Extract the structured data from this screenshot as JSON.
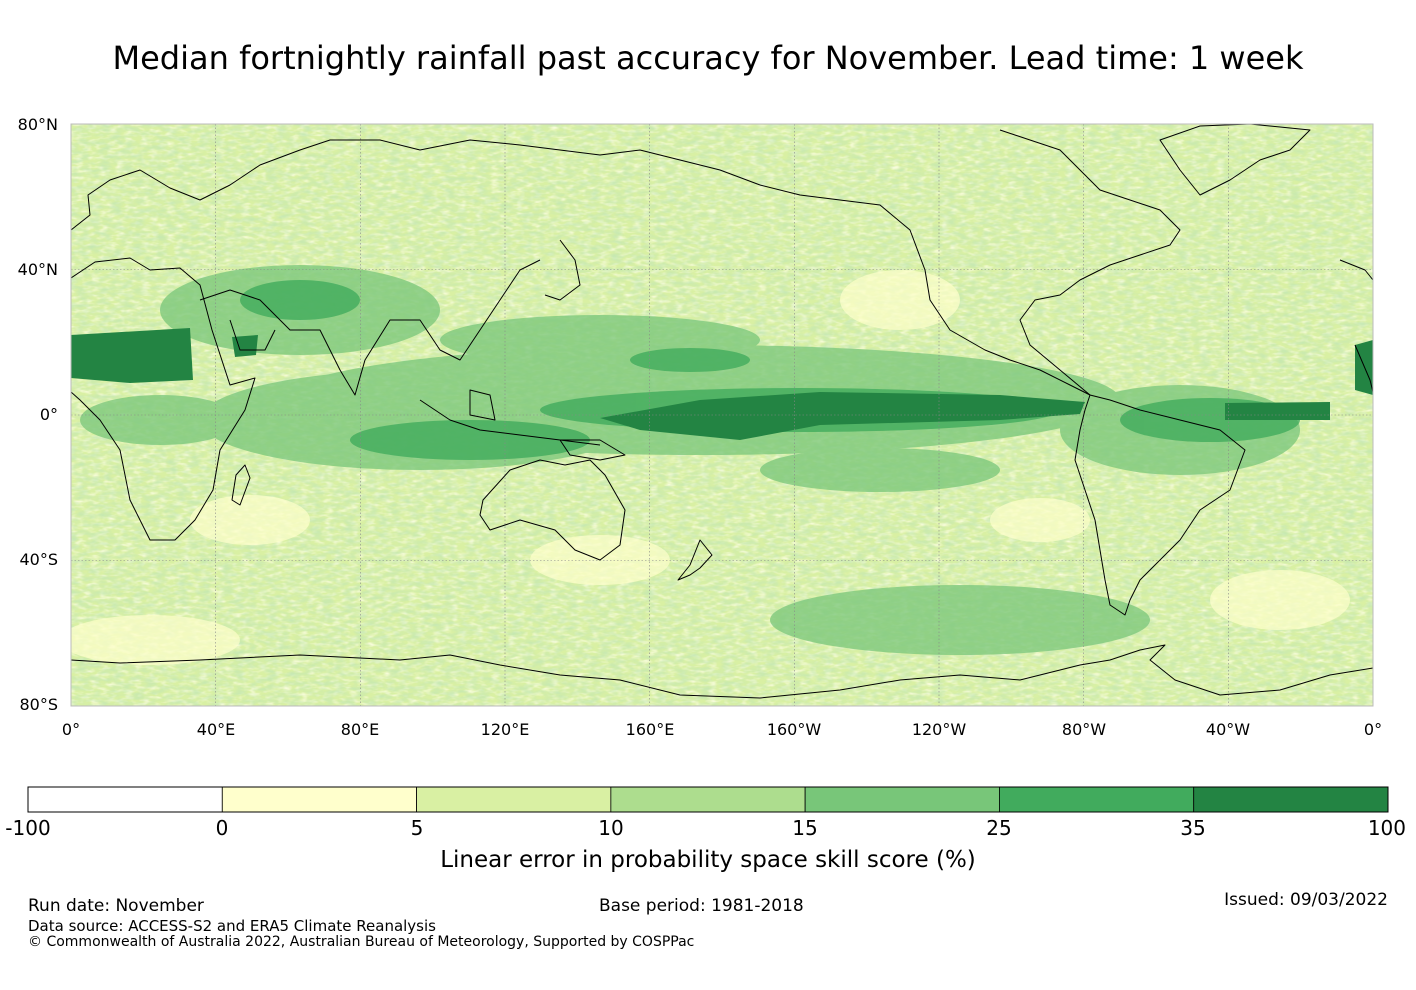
{
  "title": "Median fortnightly rainfall past accuracy for November. Lead time: 1 week",
  "map": {
    "lat_labels": [
      "80°N",
      "40°N",
      "0°",
      "40°S",
      "80°S"
    ],
    "lon_labels": [
      "0°",
      "40°E",
      "80°E",
      "120°E",
      "160°E",
      "160°W",
      "120°W",
      "80°W",
      "40°W",
      "0°"
    ],
    "background_color": "#d9f0a3"
  },
  "colorbar": {
    "label": "Linear error in probability space skill score (%)",
    "ticks": [
      "-100",
      "0",
      "5",
      "10",
      "15",
      "25",
      "35",
      "100"
    ],
    "colors": [
      "#ffffff",
      "#ffffcc",
      "#d9f0a3",
      "#addd8e",
      "#78c679",
      "#41ab5d",
      "#238443"
    ]
  },
  "footer": {
    "run_date": "Run date: November",
    "base_period": "Base period: 1981-2018",
    "issued": "Issued: 09/03/2022",
    "data_source": "Data source: ACCESS-S2 and ERA5 Climate Reanalysis",
    "copyright": "© Commonwealth of Australia 2022, Australian Bureau of Meteorology, Supported by COSPPac"
  }
}
